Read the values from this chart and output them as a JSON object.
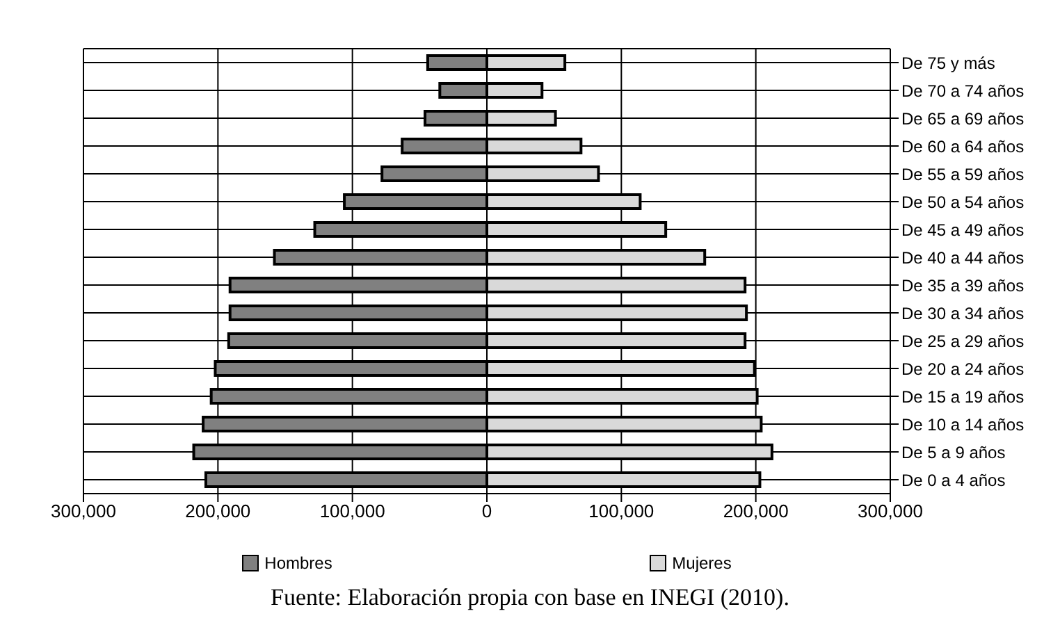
{
  "chart_data": {
    "type": "bar",
    "orientation": "horizontal",
    "stacked": true,
    "categories": [
      "De 75 y más",
      "De 70 a 74 años",
      "De 65 a 69 años",
      "De 60 a 64 años",
      "De 55 a 59 años",
      "De 50 a 54 años",
      "De 45 a 49 años",
      "De 40 a 44 años",
      "De 35 a 39 años",
      "De 30 a 34 años",
      "De 25 a 29 años",
      "De 20 a 24 años",
      "De 15 a 19 años",
      "De 10 a 14 años",
      "De 5 a 9 años",
      "De 0 a 4 años"
    ],
    "series": [
      {
        "name": "Hombres",
        "color": "#808080",
        "values": [
          -44000,
          -35000,
          -46000,
          -63000,
          -78000,
          -106000,
          -128000,
          -158000,
          -191000,
          -191000,
          -192000,
          -202000,
          -205000,
          -211000,
          -218000,
          -209000
        ]
      },
      {
        "name": "Mujeres",
        "color": "#d9d9d9",
        "values": [
          58000,
          41000,
          51000,
          70000,
          83000,
          114000,
          133000,
          162000,
          192000,
          193000,
          192000,
          199000,
          201000,
          204000,
          212000,
          203000
        ]
      }
    ],
    "xlim": [
      -300000,
      300000
    ],
    "xticks": [
      {
        "value": -300000,
        "label": "300,000"
      },
      {
        "value": -200000,
        "label": "200,000"
      },
      {
        "value": -100000,
        "label": "100,000"
      },
      0,
      {
        "value": 100000,
        "label": "100,000"
      },
      {
        "value": 200000,
        "label": "200,000"
      },
      {
        "value": 300000,
        "label": "300,000"
      }
    ],
    "grid": true,
    "legend": "bottom",
    "annotations": [
      "Fuente: Elaboración propia con base en INEGI (2010)."
    ]
  }
}
